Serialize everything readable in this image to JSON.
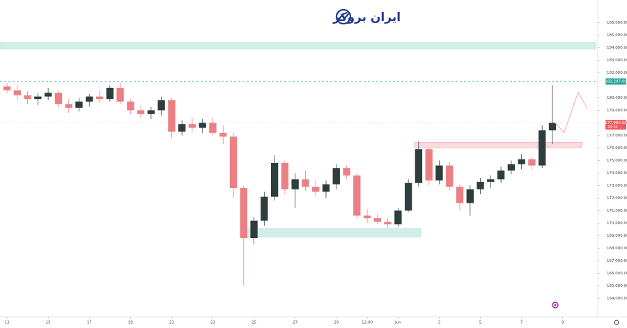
{
  "header": {
    "logo_text": "ایران بروکر"
  },
  "chart_data": {
    "type": "candlestick",
    "up_color": "#2d3e3c",
    "down_color": "#ec7f82",
    "xlim": [
      -0.34,
      28.6
    ],
    "ylim": [
      162800,
      187800
    ],
    "xticks": [
      {
        "value": 0,
        "label": "13"
      },
      {
        "value": 2,
        "label": "15"
      },
      {
        "value": 4,
        "label": "17"
      },
      {
        "value": 6,
        "label": "19"
      },
      {
        "value": 8,
        "label": "21"
      },
      {
        "value": 10,
        "label": "23"
      },
      {
        "value": 12,
        "label": "25"
      },
      {
        "value": 14,
        "label": "27"
      },
      {
        "value": 16,
        "label": "29"
      },
      {
        "value": 17.5,
        "label": "12:00"
      },
      {
        "value": 19,
        "label": "Jun"
      },
      {
        "value": 21,
        "label": "3"
      },
      {
        "value": 23,
        "label": "5"
      },
      {
        "value": 25,
        "label": "7"
      },
      {
        "value": 27,
        "label": "9"
      }
    ],
    "yticks": [
      {
        "value": 164000,
        "label": "164,000.00"
      },
      {
        "value": 165000,
        "label": "165,000.00"
      },
      {
        "value": 166000,
        "label": "166,000.00"
      },
      {
        "value": 167000,
        "label": "167,000.00"
      },
      {
        "value": 168000,
        "label": "168,000.00"
      },
      {
        "value": 169000,
        "label": "169,000.00"
      },
      {
        "value": 170000,
        "label": "170,000.00"
      },
      {
        "value": 171000,
        "label": "171,000.00"
      },
      {
        "value": 172000,
        "label": "172,000.00"
      },
      {
        "value": 173000,
        "label": "173,000.00"
      },
      {
        "value": 174000,
        "label": "174,000.00"
      },
      {
        "value": 175000,
        "label": "175,000.00"
      },
      {
        "value": 176000,
        "label": "176,000.00"
      },
      {
        "value": 177000,
        "label": "177,000.00"
      },
      {
        "value": 178000,
        "label": "178,000.00"
      },
      {
        "value": 179000,
        "label": "179,000.00"
      },
      {
        "value": 180000,
        "label": "180,000.00"
      },
      {
        "value": 182000,
        "label": "182,000.00"
      },
      {
        "value": 183000,
        "label": "183,000.00"
      },
      {
        "value": 184000,
        "label": "184,000.00"
      },
      {
        "value": 185000,
        "label": "185,000.00"
      },
      {
        "value": 186000,
        "label": "186,000.00"
      }
    ],
    "x": [
      0,
      0.5,
      1,
      1.5,
      2,
      2.5,
      3,
      3.5,
      4,
      4.5,
      5,
      5.5,
      6,
      6.5,
      7,
      7.5,
      8,
      8.5,
      9,
      9.5,
      10,
      10.5,
      11,
      11.5,
      12,
      12.5,
      13,
      13.5,
      14,
      14.5,
      15,
      15.5,
      16,
      16.5,
      17,
      17.5,
      18,
      18.5,
      19,
      19.5,
      20,
      20.5,
      21,
      21.5,
      22,
      22.5,
      23,
      23.5,
      24,
      24.5,
      25,
      25.5,
      26,
      26.5
    ],
    "open": [
      180900,
      180600,
      180200,
      179900,
      180100,
      180400,
      179500,
      179200,
      179700,
      180100,
      179900,
      180800,
      179700,
      179000,
      178700,
      179000,
      179800,
      177300,
      177900,
      177600,
      178000,
      177200,
      176900,
      172800,
      168800,
      170200,
      172100,
      174800,
      172700,
      173500,
      172900,
      172500,
      173100,
      174400,
      173800,
      170600,
      170400,
      170100,
      169900,
      171000,
      173200,
      175900,
      173400,
      174600,
      172900,
      171600,
      172700,
      173300,
      173500,
      174200,
      174700,
      175100,
      174600,
      177400
    ],
    "high": [
      181200,
      181000,
      180500,
      180400,
      180800,
      180600,
      179900,
      180000,
      180300,
      180600,
      181000,
      181200,
      179900,
      179400,
      179300,
      180100,
      180000,
      178200,
      178400,
      178300,
      178400,
      177800,
      177200,
      173000,
      170500,
      172500,
      175400,
      175000,
      174000,
      174200,
      173500,
      173400,
      174700,
      174600,
      174000,
      171100,
      170700,
      170400,
      171200,
      173500,
      176500,
      176000,
      175000,
      174900,
      173100,
      173000,
      173600,
      173800,
      174500,
      175000,
      175500,
      175300,
      177800,
      181000
    ],
    "low": [
      180400,
      179800,
      179500,
      179400,
      179800,
      179200,
      178800,
      178900,
      179300,
      179600,
      179700,
      179500,
      178700,
      178400,
      178300,
      178600,
      176800,
      177000,
      177300,
      177200,
      177000,
      176300,
      172000,
      165000,
      168300,
      169800,
      171800,
      172300,
      171200,
      172600,
      172100,
      172000,
      172700,
      173500,
      170300,
      170000,
      169900,
      169600,
      169700,
      170900,
      172900,
      173000,
      173100,
      172600,
      171000,
      170600,
      172300,
      172800,
      173200,
      173900,
      174300,
      174200,
      174400,
      176300
    ],
    "close": [
      180600,
      180200,
      179900,
      180100,
      180400,
      179500,
      179200,
      179700,
      180100,
      179900,
      180800,
      179700,
      179000,
      178700,
      179000,
      179800,
      177300,
      177900,
      177600,
      178000,
      177200,
      176900,
      172800,
      168800,
      170200,
      172100,
      174800,
      172700,
      173500,
      172900,
      172500,
      173100,
      174400,
      173800,
      170600,
      170400,
      170100,
      169900,
      171000,
      173200,
      175900,
      173400,
      174600,
      172900,
      171600,
      172700,
      173300,
      173500,
      174200,
      174700,
      175100,
      174600,
      177400,
      178000
    ],
    "zones": [
      {
        "x": [
          -0.34,
          28.6
        ],
        "y": [
          183900,
          184400
        ],
        "color": "#d3eee8"
      },
      {
        "x": [
          11.5,
          20.1
        ],
        "y": [
          168900,
          169550
        ],
        "color": "#d3eee8"
      },
      {
        "x": [
          19.8,
          27.95
        ],
        "y": [
          176000,
          176440
        ],
        "color": "#fadadd"
      }
    ],
    "price_line": {
      "value": 181297,
      "label": "181,297.00",
      "color": "#26a69a"
    },
    "last_price": {
      "value": 177985,
      "label": "177,985.00",
      "countdown": "23:15",
      "color": "#f05a5e"
    },
    "projection": {
      "x": [
        26.6,
        27.07,
        27.75,
        28.19
      ],
      "values": [
        178056,
        177222,
        180444,
        179167
      ],
      "color": "#f4a7ae"
    }
  }
}
